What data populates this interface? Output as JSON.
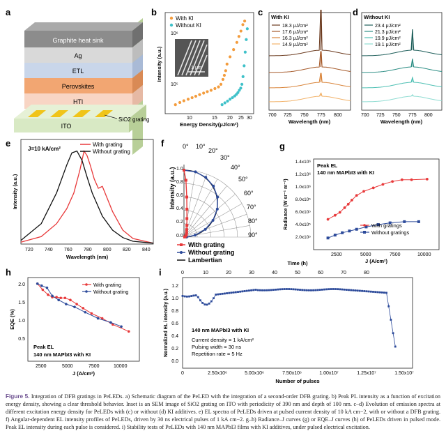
{
  "figure": {
    "label": "Figure 5.",
    "caption_text": "Integration of DFB gratings in PeLEDs. a) Schematic diagram of the PeLED with the integration of a second-order DFB grating. b) Peak PL intensity as a function of excitation energy density, showing a clear threshold behavior. Inset is an SEM image of SiO2 grating on ITO with periodicity of 390 nm and depth of 100 nm. c–d) Evolution of emission spectra at different excitation energy density for PeLEDs with (c) or without (d) KI additives. e) EL spectra of PeLEDs driven at pulsed current density of 10 kA cm−2, with or without a DFB grating. f) Angular-dependent EL intensity profiles of PeLEDs, driven by 30 ns electrical pulses of 1 kA cm−2. g–h) Radiance–J curves (g) or EQE–J curves (h) of PeLEDs driven in pulsed mode. Peak EL intensity during each pulse is considered. i) Stability tests of PeLEDs with 140 nm MAPbI3 films with KI additives, under pulsed electrical excitation."
  },
  "panels": {
    "a": {
      "label": "a",
      "layers": [
        "Graphite heat sink",
        "Ag",
        "ETL",
        "Perovskites",
        "HTl",
        "ITO"
      ],
      "callout": "SiO2 grating",
      "colors": {
        "graphite": "#8c8c8c",
        "ag": "#d9d9d9",
        "etl": "#c9d6ea",
        "perov": "#f2a672",
        "htl": "#f8d5c4",
        "ito": "#d8e9c4",
        "grating": "#f0c419"
      }
    },
    "b": {
      "label": "b",
      "legend": [
        "With KI",
        "Without KI"
      ],
      "xlabel": "Energy Density(μJ/cm²)",
      "ylabel": "Intensity (a.u.)",
      "xticks": [
        "10",
        "15",
        "20",
        "25",
        "30"
      ],
      "yticks": [
        "10⁵",
        "10⁶"
      ],
      "inset_scale": "1 μm",
      "colors": {
        "with": "#f39c3d",
        "without": "#3fc1c9"
      }
    },
    "c": {
      "label": "c",
      "title": "With KI",
      "legend": [
        "18.3 μJ/cm²",
        "17.6 μJ/cm²",
        "16.3 μJ/cm²",
        "14.9 μJ/cm²"
      ],
      "xticks": [
        "700",
        "725",
        "750",
        "775",
        "800"
      ],
      "xlabel": "Wavelength (nm)",
      "colors": [
        "#6b3a1e",
        "#a65a2a",
        "#d9853b",
        "#f2b36b"
      ]
    },
    "d": {
      "label": "d",
      "title": "Without KI",
      "legend": [
        "23.4 μJ/cm²",
        "21.3 μJ/cm²",
        "19.9 μJ/cm²",
        "19.1 μJ/cm²"
      ],
      "xticks": [
        "700",
        "725",
        "750",
        "775",
        "800"
      ],
      "xlabel": "Wavelength (nm)",
      "colors": [
        "#1e5e5a",
        "#2f8f86",
        "#4fc0b4",
        "#8fdcd2"
      ]
    },
    "e": {
      "label": "e",
      "annotation": "J=10 kA/cm²",
      "legend": [
        "With grating",
        "Without grating"
      ],
      "xticks": [
        "720",
        "740",
        "760",
        "780",
        "800",
        "820",
        "840"
      ],
      "xlabel": "Wavelength (nm)",
      "ylabel": "Intensity (a.u.)"
    },
    "f": {
      "label": "f",
      "ylabel": "Intensity (a.u.)",
      "yticks": [
        "0.0",
        "0.2",
        "0.4",
        "0.6",
        "0.8",
        "1.0"
      ],
      "angles": [
        "0°",
        "10°",
        "20°",
        "30°",
        "40°",
        "50°",
        "60°",
        "70°",
        "80°",
        "90°"
      ],
      "legend": [
        "With grating",
        "Without grating",
        "Lambertian"
      ]
    },
    "g": {
      "label": "g",
      "annotation1": "Peak EL",
      "annotation2": "140 nm MAPbI3 with KI",
      "legend": [
        "With gratings",
        "Without gratings"
      ],
      "xticks": [
        "2500",
        "5000",
        "7500",
        "10000"
      ],
      "yticks": [
        "2.0x10⁵",
        "4.0x10⁵",
        "6.0x10⁵",
        "8.0x10⁵",
        "1.0x10⁶",
        "1.2x10⁶",
        "1.4x10⁶"
      ],
      "xlabel": "J (A/cm²)",
      "ylabel": "Radiance (W sr⁻¹ m⁻²)"
    },
    "h": {
      "label": "h",
      "annotation1": "Peak EL",
      "annotation2": "140 nm MAPbI3 with KI",
      "legend": [
        "With grating",
        "Without grating"
      ],
      "xticks": [
        "2500",
        "5000",
        "7500",
        "10000"
      ],
      "yticks": [
        "0.5",
        "1.0",
        "1.5",
        "2.0"
      ],
      "xlabel": "J (A/cm²)",
      "ylabel": "EQE (%)"
    },
    "i": {
      "label": "i",
      "top_label": "Time (h)",
      "top_ticks": [
        "0",
        "10",
        "20",
        "30",
        "40",
        "50",
        "60",
        "70",
        "80"
      ],
      "xticks": [
        "0",
        "2.50x10⁶",
        "5.00x10⁶",
        "7.50x10⁶",
        "1.00x10⁷",
        "1.25x10⁷",
        "1.50x10⁷"
      ],
      "yticks": [
        "0.0",
        "0.2",
        "0.4",
        "0.6",
        "0.8",
        "1.0",
        "1.2"
      ],
      "xlabel": "Number of pulses",
      "ylabel": "Normalized EL intensity (a.u.)",
      "notes": [
        "140 nm MAPbI3 with KI",
        "Current density = 1 kA/cm²",
        "Pulsing width = 30 ns",
        "Repetition rate = 5 Hz"
      ]
    }
  },
  "chart_data": [
    {
      "type": "scatter",
      "panel": "b",
      "xlabel": "Energy Density(μJ/cm²)",
      "ylabel": "Intensity (a.u.)",
      "xlog": true,
      "ylog": true,
      "series": [
        {
          "name": "With KI",
          "x": [
            6.2,
            6.8,
            7.4,
            8.1,
            8.8,
            9.5,
            10.3,
            11.2,
            12.1,
            13.1,
            14.2,
            15.3,
            16.1,
            16.8,
            17.3,
            17.8,
            18.3,
            19.5,
            21,
            22.5,
            23.5,
            24.5,
            25.5,
            26.5
          ],
          "y": [
            70000.0,
            76000.0,
            81000.0,
            86000.0,
            91000.0,
            96000.0,
            102000.0,
            108000.0,
            114000.0,
            120000.0,
            128000.0,
            136000.0,
            150000.0,
            180000.0,
            210000.0,
            250000.0,
            320000.0,
            420000.0,
            550000.0,
            720000.0,
            900000.0,
            1100000.0,
            1400000.0,
            1600000.0
          ]
        },
        {
          "name": "Without KI",
          "x": [
            16.5,
            17.5,
            18.5,
            19.5,
            20.5,
            21.5,
            22.3,
            23,
            23.7,
            24.4,
            25,
            25.6,
            26.2,
            26.8,
            27.4,
            28
          ],
          "y": [
            70000.0,
            75000.0,
            80000.0,
            86000.0,
            91000.0,
            97000.0,
            103000.0,
            110000.0,
            120000.0,
            130000.0,
            150000.0,
            200000.0,
            300000.0,
            500000.0,
            800000.0,
            1200000.0
          ]
        }
      ]
    },
    {
      "type": "line",
      "panel": "e",
      "xlabel": "Wavelength (nm)",
      "ylabel": "Intensity (a.u.)",
      "xlim": [
        710,
        840
      ],
      "series": [
        {
          "name": "With grating",
          "x": [
            710,
            730,
            745,
            755,
            762,
            768,
            772,
            775,
            778,
            782,
            786,
            790,
            800,
            810,
            820,
            840
          ],
          "y": [
            0.02,
            0.08,
            0.22,
            0.38,
            0.55,
            0.8,
            1.0,
            0.95,
            0.85,
            0.7,
            0.6,
            0.62,
            0.35,
            0.15,
            0.06,
            0.01
          ]
        },
        {
          "name": "Without grating",
          "x": [
            710,
            730,
            745,
            755,
            760,
            765,
            770,
            775,
            780,
            790,
            800,
            810,
            820,
            840
          ],
          "y": [
            0.04,
            0.22,
            0.55,
            0.85,
            0.98,
            1.0,
            0.9,
            0.72,
            0.55,
            0.3,
            0.15,
            0.07,
            0.03,
            0.01
          ]
        }
      ]
    },
    {
      "type": "line",
      "panel": "g",
      "xlabel": "J (A/cm²)",
      "ylabel": "Radiance (W sr⁻¹ m⁻²)",
      "series": [
        {
          "name": "With gratings",
          "x": [
            2200,
            2800,
            3200,
            3600,
            3900,
            4200,
            4600,
            5200,
            6000,
            6800,
            7600,
            8400,
            9200,
            10500
          ],
          "y": [
            520000.0,
            590000.0,
            640000.0,
            720000.0,
            780000.0,
            850000.0,
            930000.0,
            1000000.0,
            1060000.0,
            1120000.0,
            1170000.0,
            1200000.0,
            1200000.0,
            1210000.0
          ]
        },
        {
          "name": "Without gratings",
          "x": [
            2200,
            2800,
            3400,
            4000,
            4600,
            5400,
            6400,
            7400,
            8600,
            9800
          ],
          "y": [
            200000.0,
            250000.0,
            290000.0,
            320000.0,
            350000.0,
            390000.0,
            430000.0,
            460000.0,
            480000.0,
            480000.0
          ]
        }
      ]
    },
    {
      "type": "line",
      "panel": "h",
      "xlabel": "J (A/cm²)",
      "ylabel": "EQE (%)",
      "series": [
        {
          "name": "With grating",
          "x": [
            1900,
            2400,
            2900,
            3300,
            3700,
            4100,
            4500,
            5000,
            5600,
            6200,
            7000,
            8000,
            9000,
            10500
          ],
          "y": [
            2.15,
            2.0,
            1.88,
            1.82,
            1.82,
            1.8,
            1.8,
            1.75,
            1.65,
            1.55,
            1.42,
            1.3,
            1.15,
            0.98
          ]
        },
        {
          "name": "Without grating",
          "x": [
            1900,
            2300,
            2800,
            3300,
            3900,
            4600,
            5400,
            6400,
            7600,
            8800,
            9800
          ],
          "y": [
            2.15,
            2.1,
            2.05,
            1.85,
            1.75,
            1.65,
            1.58,
            1.45,
            1.3,
            1.2,
            1.1
          ]
        }
      ]
    }
  ]
}
